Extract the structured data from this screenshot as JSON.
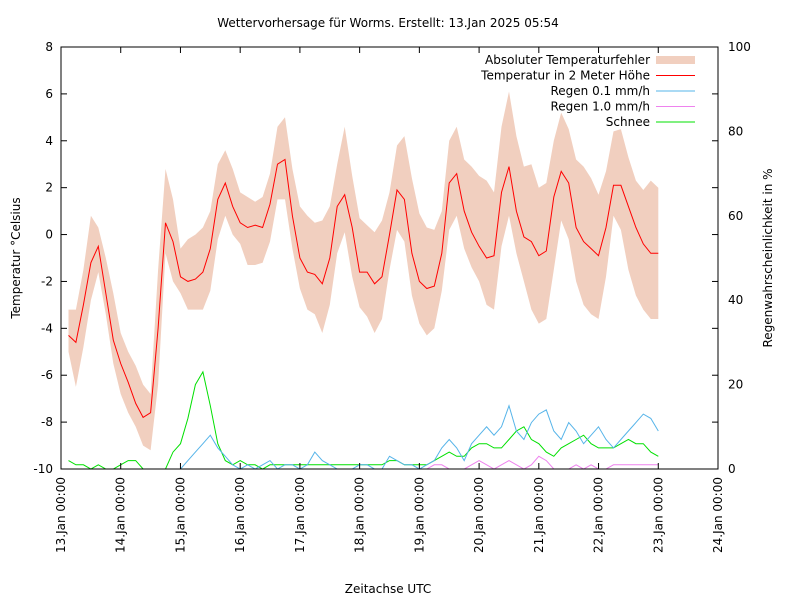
{
  "chart_data": {
    "type": "line",
    "title": "Wettervorhersage für Worms. Erstellt: 13.Jan 2025 05:54",
    "xlabel": "Zeitachse UTC",
    "ylabel": "Temperatur °Celsius",
    "y2label": "Regenwahrscheinlichkeit in %",
    "xlim_days": [
      0,
      11
    ],
    "ylim": [
      -10,
      8
    ],
    "y2lim": [
      0,
      100
    ],
    "yticks": [
      "8",
      "6",
      "4",
      "2",
      "0",
      "-2",
      "-4",
      "-6",
      "-8",
      "-10"
    ],
    "ytick_values": [
      8,
      6,
      4,
      2,
      0,
      -2,
      -4,
      -6,
      -8,
      -10
    ],
    "y2ticks": [
      "100",
      "80",
      "60",
      "40",
      "20",
      "0"
    ],
    "y2tick_values": [
      100,
      80,
      60,
      40,
      20,
      0
    ],
    "xticks": [
      "13.Jan 00:00",
      "14.Jan 00:00",
      "15.Jan 00:00",
      "16.Jan 00:00",
      "17.Jan 00:00",
      "18.Jan 00:00",
      "19.Jan 00:00",
      "20.Jan 00:00",
      "21.Jan 00:00",
      "22.Jan 00:00",
      "23.Jan 00:00",
      "24.Jan 00:00"
    ],
    "legend_position": "top-right",
    "legend": [
      {
        "label": "Absoluter Temperaturfehler",
        "color": "#f1cfbf",
        "kind": "fill"
      },
      {
        "label": "Temperatur in 2 Meter Höhe",
        "color": "#ff0000",
        "kind": "line"
      },
      {
        "label": "Regen 0.1 mm/h",
        "color": "#56b4e9",
        "kind": "line"
      },
      {
        "label": "Regen 1.0 mm/h",
        "color": "#ee82ee",
        "kind": "line"
      },
      {
        "label": "Schnee",
        "color": "#00e000",
        "kind": "line"
      }
    ],
    "x_step_hours": 3,
    "x_start_hours": 3,
    "temperature": [
      -4.3,
      -4.6,
      -3.0,
      -1.2,
      -0.5,
      -2.5,
      -4.5,
      -5.5,
      -6.3,
      -7.2,
      -7.8,
      -7.6,
      -4.0,
      0.5,
      -0.3,
      -1.8,
      -2.0,
      -1.9,
      -1.6,
      -0.6,
      1.5,
      2.2,
      1.2,
      0.5,
      0.3,
      0.4,
      0.3,
      1.3,
      3.0,
      3.2,
      0.8,
      -1.0,
      -1.6,
      -1.7,
      -2.1,
      -1.0,
      1.2,
      1.7,
      0.3,
      -1.6,
      -1.6,
      -2.1,
      -1.8,
      0.0,
      1.9,
      1.5,
      -0.8,
      -2.0,
      -2.3,
      -2.2,
      -0.8,
      2.2,
      2.6,
      1.0,
      0.1,
      -0.5,
      -1.0,
      -0.9,
      1.8,
      2.9,
      1.0,
      -0.1,
      -0.3,
      -0.9,
      -0.7,
      1.6,
      2.7,
      2.2,
      0.3,
      -0.3,
      -0.6,
      -0.9,
      0.3,
      2.1,
      2.1,
      1.2,
      0.3,
      -0.4,
      -0.8,
      -0.8
    ],
    "temp_error_upper": [
      -3.2,
      -3.2,
      -1.5,
      0.8,
      0.3,
      -1.0,
      -2.5,
      -4.2,
      -5.0,
      -5.6,
      -6.4,
      -6.8,
      -1.5,
      2.8,
      1.5,
      -0.6,
      -0.2,
      0.0,
      0.3,
      1.0,
      3.0,
      3.6,
      2.8,
      1.8,
      1.6,
      1.4,
      1.6,
      2.6,
      4.6,
      5.0,
      2.8,
      1.2,
      0.8,
      0.5,
      0.6,
      1.2,
      3.0,
      4.6,
      2.5,
      0.7,
      0.4,
      0.1,
      0.6,
      1.8,
      3.8,
      4.2,
      2.4,
      0.9,
      0.3,
      0.2,
      1.0,
      4.0,
      4.6,
      3.2,
      2.9,
      2.5,
      2.3,
      1.8,
      4.6,
      6.1,
      4.2,
      2.9,
      3.0,
      2.0,
      2.2,
      4.0,
      5.2,
      4.5,
      3.2,
      2.9,
      2.4,
      1.7,
      2.7,
      4.4,
      4.5,
      3.3,
      2.3,
      1.9,
      2.3,
      2.0
    ],
    "temp_error_lower": [
      -5.0,
      -6.5,
      -4.8,
      -2.8,
      -1.6,
      -3.4,
      -5.5,
      -6.8,
      -7.6,
      -8.2,
      -9.0,
      -9.2,
      -6.4,
      -0.8,
      -2.0,
      -2.5,
      -3.2,
      -3.2,
      -3.2,
      -2.4,
      -0.2,
      0.8,
      0.0,
      -0.4,
      -1.3,
      -1.3,
      -1.2,
      -0.3,
      1.5,
      1.5,
      -0.6,
      -2.3,
      -3.2,
      -3.4,
      -4.2,
      -3.0,
      -0.8,
      0.1,
      -1.8,
      -3.1,
      -3.5,
      -4.2,
      -3.6,
      -1.5,
      0.2,
      -0.3,
      -2.6,
      -3.8,
      -4.3,
      -4.0,
      -2.4,
      0.2,
      0.8,
      -0.6,
      -1.4,
      -2.0,
      -3.0,
      -3.2,
      -0.5,
      0.8,
      -0.8,
      -2.0,
      -3.2,
      -3.8,
      -3.6,
      -1.5,
      0.6,
      -0.2,
      -2.0,
      -3.0,
      -3.4,
      -3.6,
      -1.8,
      0.8,
      0.2,
      -1.5,
      -2.6,
      -3.2,
      -3.6,
      -3.6
    ],
    "rain_0_1": [
      0,
      0,
      0,
      0,
      0,
      0,
      0,
      0,
      0,
      0,
      0,
      0,
      0,
      0,
      0,
      0,
      2,
      4,
      6,
      8,
      5,
      3,
      1,
      0,
      1,
      0,
      1,
      2,
      0,
      1,
      1,
      0,
      1,
      4,
      2,
      1,
      0,
      0,
      0,
      1,
      1,
      0,
      0,
      3,
      2,
      1,
      1,
      0,
      1,
      2,
      5,
      7,
      5,
      2,
      6,
      8,
      10,
      8,
      10,
      15,
      9,
      7,
      11,
      13,
      14,
      9,
      7,
      11,
      9,
      6,
      8,
      10,
      7,
      5,
      7,
      9,
      11,
      13,
      12,
      9
    ],
    "rain_1_0": [
      0,
      0,
      0,
      0,
      0,
      0,
      0,
      0,
      0,
      0,
      0,
      0,
      0,
      0,
      0,
      0,
      0,
      0,
      0,
      0,
      0,
      0,
      0,
      0,
      0,
      0,
      0,
      0,
      0,
      0,
      0,
      0,
      0,
      0,
      0,
      0,
      0,
      0,
      0,
      0,
      0,
      0,
      0,
      0,
      0,
      0,
      0,
      0,
      0,
      1,
      1,
      0,
      0,
      0,
      1,
      2,
      1,
      0,
      1,
      2,
      1,
      0,
      1,
      3,
      2,
      0,
      0,
      0,
      1,
      0,
      1,
      0,
      0,
      1,
      1,
      1,
      1,
      1,
      1,
      1
    ],
    "snow": [
      2,
      1,
      1,
      0,
      1,
      0,
      0,
      1,
      2,
      2,
      0,
      0,
      0,
      0,
      4,
      6,
      12,
      20,
      23,
      15,
      6,
      2,
      1,
      2,
      1,
      1,
      0,
      1,
      1,
      1,
      1,
      1,
      1,
      1,
      1,
      1,
      1,
      1,
      1,
      1,
      1,
      1,
      1,
      2,
      2,
      1,
      1,
      1,
      1,
      2,
      3,
      4,
      3,
      3,
      5,
      6,
      6,
      5,
      5,
      7,
      9,
      10,
      7,
      6,
      4,
      3,
      5,
      6,
      7,
      8,
      6,
      5,
      5,
      5,
      6,
      7,
      6,
      6,
      4,
      3
    ]
  }
}
